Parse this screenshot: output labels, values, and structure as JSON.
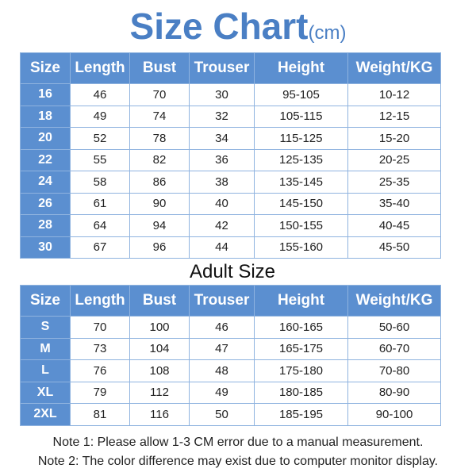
{
  "header": {
    "title": "Size Chart",
    "unit": "(cm)"
  },
  "kids_table": {
    "columns": [
      "Size",
      "Length",
      "Bust",
      "Trouser",
      "Height",
      "Weight/KG"
    ],
    "rows": [
      [
        "16",
        "46",
        "70",
        "30",
        "95-105",
        "10-12"
      ],
      [
        "18",
        "49",
        "74",
        "32",
        "105-115",
        "12-15"
      ],
      [
        "20",
        "52",
        "78",
        "34",
        "115-125",
        "15-20"
      ],
      [
        "22",
        "55",
        "82",
        "36",
        "125-135",
        "20-25"
      ],
      [
        "24",
        "58",
        "86",
        "38",
        "135-145",
        "25-35"
      ],
      [
        "26",
        "61",
        "90",
        "40",
        "145-150",
        "35-40"
      ],
      [
        "28",
        "64",
        "94",
        "42",
        "150-155",
        "40-45"
      ],
      [
        "30",
        "67",
        "96",
        "44",
        "155-160",
        "45-50"
      ]
    ]
  },
  "adult_title": "Adult Size",
  "adult_table": {
    "columns": [
      "Size",
      "Length",
      "Bust",
      "Trouser",
      "Height",
      "Weight/KG"
    ],
    "rows": [
      [
        "S",
        "70",
        "100",
        "46",
        "160-165",
        "50-60"
      ],
      [
        "M",
        "73",
        "104",
        "47",
        "165-175",
        "60-70"
      ],
      [
        "L",
        "76",
        "108",
        "48",
        "175-180",
        "70-80"
      ],
      [
        "XL",
        "79",
        "112",
        "49",
        "180-185",
        "80-90"
      ],
      [
        "2XL",
        "81",
        "116",
        "50",
        "185-195",
        "90-100"
      ]
    ]
  },
  "notes": [
    "Note 1: Please allow 1-3 CM error due to a manual measurement.",
    "Note 2: The color difference may exist due to computer monitor display."
  ]
}
